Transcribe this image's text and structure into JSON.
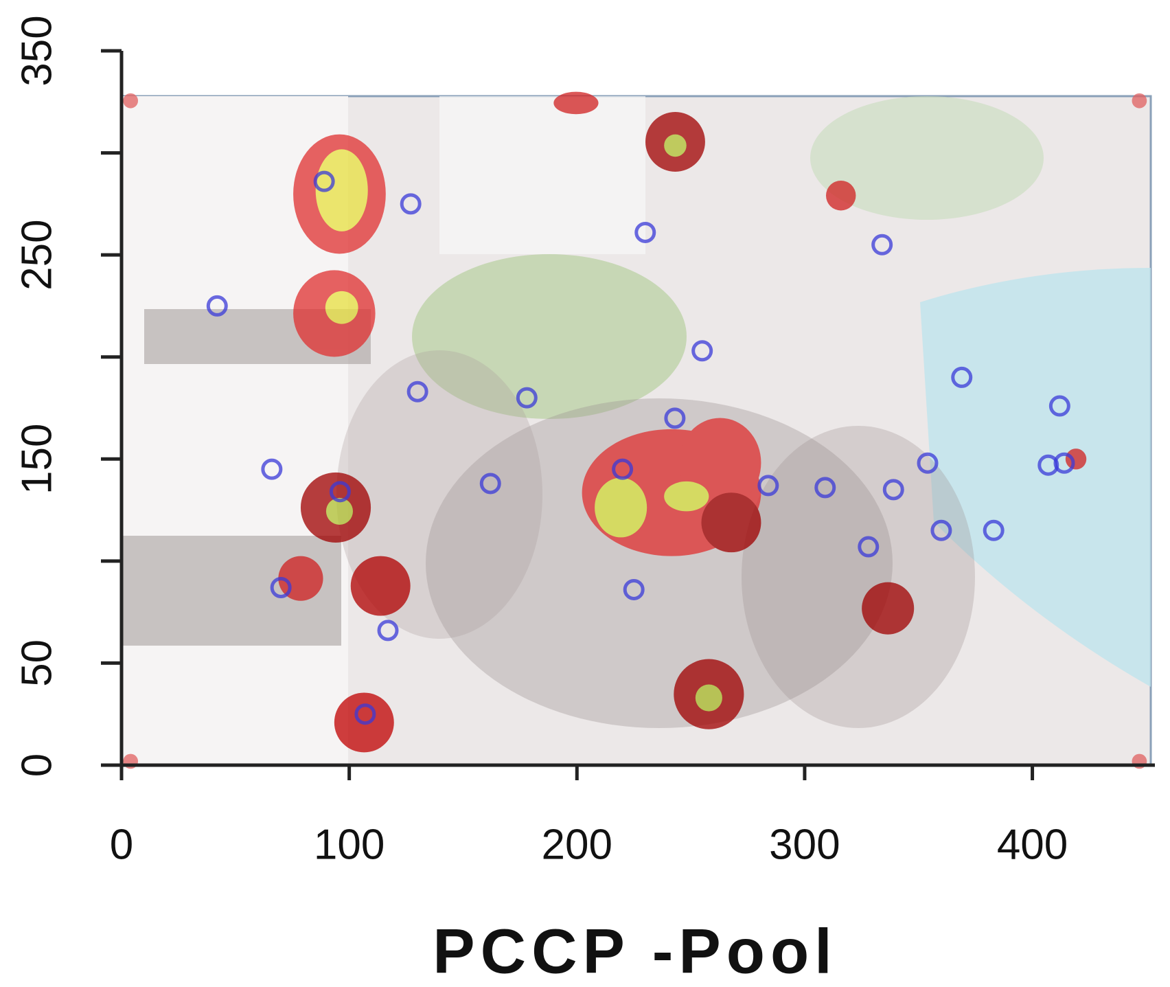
{
  "chart_data": {
    "type": "scatter",
    "title": "PCCP -Pool",
    "x": [
      89,
      127,
      42,
      230,
      334,
      255,
      369,
      130,
      178,
      243,
      412,
      66,
      96,
      220,
      162,
      284,
      309,
      339,
      354,
      407,
      414,
      360,
      383,
      328,
      225,
      70,
      117,
      107
    ],
    "y": [
      286,
      275,
      225,
      261,
      255,
      203,
      190,
      183,
      180,
      170,
      176,
      145,
      134,
      145,
      138,
      137,
      136,
      135,
      148,
      147,
      148,
      115,
      115,
      107,
      86,
      87,
      66,
      25
    ],
    "color": "#3a3ad8",
    "xlim": [
      0,
      452
    ],
    "ylim": [
      0,
      350
    ],
    "xticks": [
      0,
      100,
      200,
      300,
      400
    ],
    "yticks": [
      0,
      50,
      {
        "value": 100,
        "label": null
      },
      150,
      {
        "value": 200,
        "label": null
      },
      250,
      {
        "value": 300,
        "label": null
      },
      350
    ]
  }
}
